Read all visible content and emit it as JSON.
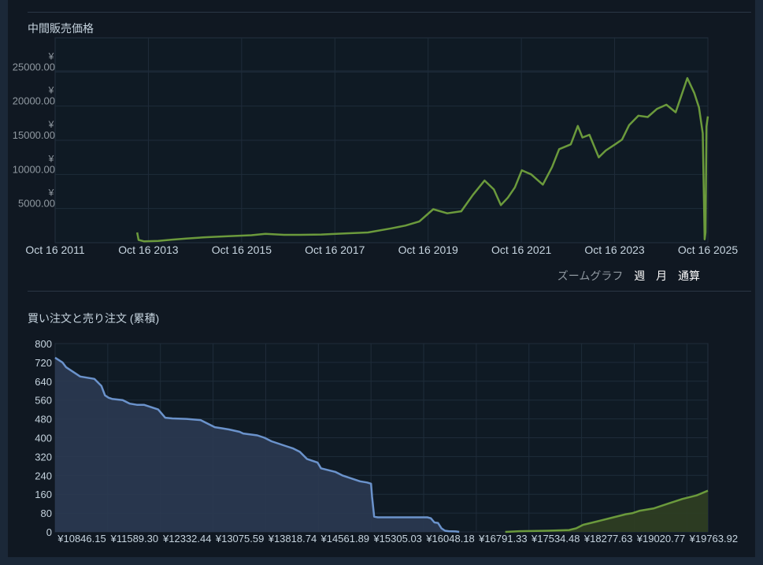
{
  "price_section": {
    "title": "中間販売価格"
  },
  "zoom": {
    "label": "ズームグラフ",
    "options": [
      "週",
      "月",
      "通算"
    ]
  },
  "orders_section": {
    "title": "買い注文と売り注文 (累積)"
  },
  "colors": {
    "price_line": "#6b9a3c",
    "buy": "#6b93cc",
    "sell": "#6b9a3c"
  },
  "chart_data": [
    {
      "type": "line",
      "title": "中間販売価格",
      "y_currency_symbol": "¥",
      "ylim": [
        0,
        30000
      ],
      "y_ticks": [
        "5000.00",
        "10000.00",
        "15000.00",
        "20000.00",
        "25000.00"
      ],
      "x_ticks": [
        "Oct 16 2011",
        "Oct 16 2013",
        "Oct 16 2015",
        "Oct 16 2017",
        "Oct 16 2019",
        "Oct 16 2021",
        "Oct 16 2023",
        "Oct 16 2025"
      ],
      "xlim": [
        2011.79,
        2025.79
      ],
      "grid": true,
      "series": [
        {
          "x": [
            2013.55,
            2013.58,
            2013.7,
            2014.0,
            2014.3,
            2014.6,
            2015.0,
            2015.5,
            2016.0,
            2016.3,
            2016.7,
            2017.0,
            2017.5,
            2018.0,
            2018.5,
            2019.0,
            2019.3,
            2019.6,
            2019.9,
            2020.2,
            2020.5,
            2020.75,
            2021.0,
            2021.2,
            2021.35,
            2021.5,
            2021.65,
            2021.8,
            2022.0,
            2022.25,
            2022.45,
            2022.6,
            2022.85,
            2023.0,
            2023.1,
            2023.25,
            2023.45,
            2023.6,
            2023.8,
            2023.95,
            2024.1,
            2024.3,
            2024.5,
            2024.7,
            2024.9,
            2025.1,
            2025.35,
            2025.5,
            2025.6,
            2025.68,
            2025.72,
            2025.74,
            2025.76,
            2025.79
          ],
          "values": [
            1500,
            400,
            200,
            250,
            450,
            600,
            800,
            950,
            1100,
            1300,
            1150,
            1150,
            1200,
            1350,
            1500,
            2100,
            2500,
            3100,
            4900,
            4300,
            4600,
            7000,
            9100,
            7800,
            5500,
            6600,
            8100,
            10600,
            10000,
            8500,
            11100,
            13700,
            14400,
            17100,
            15400,
            15800,
            12500,
            13500,
            14400,
            15100,
            17200,
            18600,
            18400,
            19600,
            20200,
            19100,
            24100,
            21900,
            19800,
            16000,
            500,
            1500,
            17000,
            18500
          ]
        }
      ]
    },
    {
      "type": "area",
      "title": "買い注文と売り注文 (累積)",
      "ylim": [
        0,
        800
      ],
      "y_ticks": [
        "0",
        "80",
        "160",
        "240",
        "320",
        "400",
        "480",
        "560",
        "640",
        "720",
        "800"
      ],
      "x_ticks": [
        "¥10846.15",
        "¥11589.30",
        "¥12332.44",
        "¥13075.59",
        "¥13818.74",
        "¥14561.89",
        "¥15305.03",
        "¥16048.18",
        "¥16791.33",
        "¥17534.48",
        "¥18277.63",
        "¥19020.77",
        "¥19763.92"
      ],
      "xlim": [
        10846.15,
        20060
      ],
      "grid": true,
      "series": [
        {
          "x": [
            10846,
            10950,
            11000,
            11150,
            11200,
            11400,
            11500,
            11550,
            11600,
            11650,
            11800,
            11900,
            12000,
            12100,
            12300,
            12400,
            12500,
            12700,
            12900,
            13000,
            13100,
            13200,
            13300,
            13450,
            13500,
            13700,
            13800,
            13900,
            14100,
            14200,
            14300,
            14400,
            14550,
            14600,
            14800,
            14900,
            15000,
            15100,
            15150,
            15250,
            15305,
            15320,
            15350,
            15400,
            15500,
            15700,
            15900,
            16100,
            16150,
            16200,
            16250,
            16300,
            16350,
            16400,
            16500,
            16550
          ],
          "values": [
            740,
            720,
            700,
            670,
            660,
            650,
            620,
            580,
            570,
            565,
            560,
            545,
            540,
            540,
            520,
            485,
            482,
            480,
            475,
            460,
            445,
            440,
            435,
            425,
            418,
            410,
            400,
            385,
            365,
            355,
            340,
            310,
            295,
            270,
            255,
            240,
            230,
            220,
            215,
            210,
            205,
            150,
            65,
            62,
            62,
            62,
            62,
            62,
            58,
            40,
            38,
            15,
            5,
            3,
            2,
            0
          ],
          "name": ""
        },
        {
          "x": [
            17200,
            17400,
            17800,
            18100,
            18200,
            18300,
            18500,
            18700,
            18900,
            19000,
            19100,
            19300,
            19500,
            19700,
            19900,
            20060
          ],
          "values": [
            0,
            3,
            5,
            8,
            15,
            30,
            45,
            60,
            75,
            80,
            90,
            100,
            120,
            140,
            155,
            175
          ],
          "name": ""
        }
      ]
    }
  ]
}
